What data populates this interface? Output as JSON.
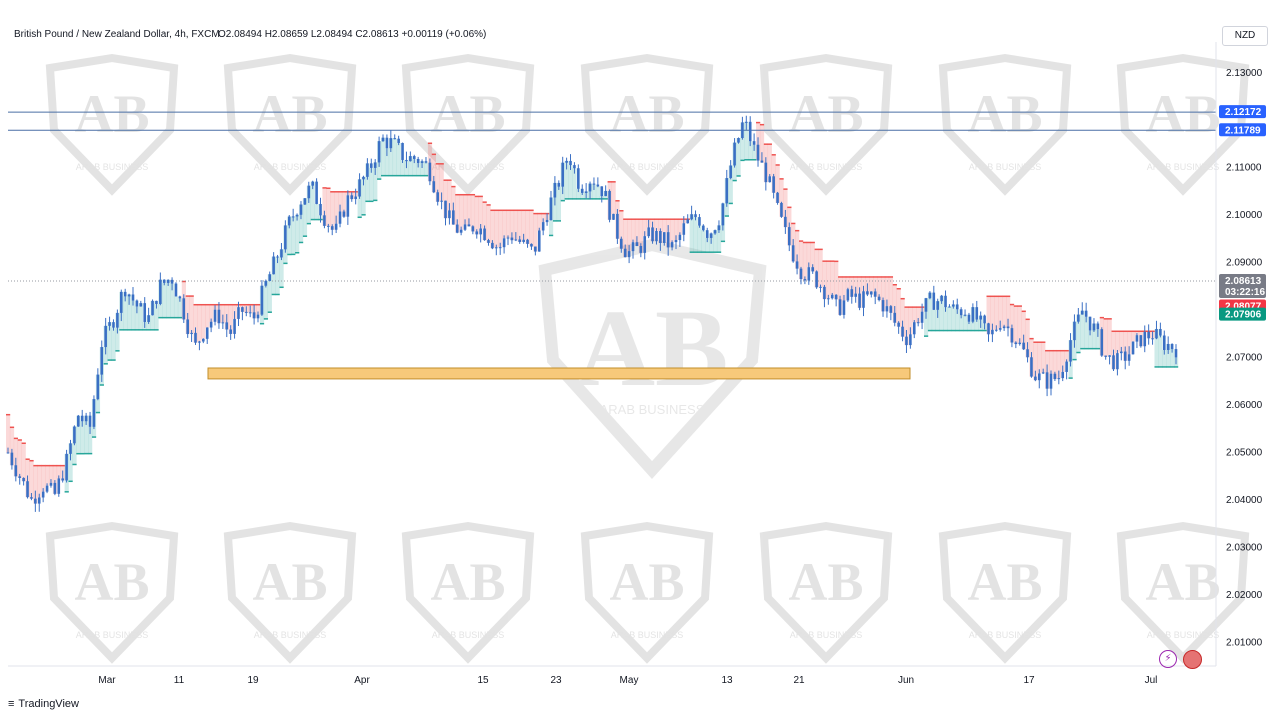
{
  "header": {
    "symbol": "British Pound / New Zealand Dollar, 4h, FXCM",
    "ohlc": "O2.08494  H2.08659  L2.08494  C2.08613  +0.00119 (+0.06%)"
  },
  "currency_button": "NZD",
  "footer": {
    "brand": "TradingView"
  },
  "watermark": {
    "text": "ARAB BUSINESS"
  },
  "colors": {
    "candle": "#3a6fc4",
    "bull_zone": "#26a69a",
    "bear_zone": "#ef5350",
    "support_box": "#f7c97a",
    "hline": "#4a6fa5"
  },
  "chart_data": {
    "type": "candlestick",
    "ylim": [
      2.005,
      2.1365
    ],
    "y_ticks": [
      "2.13000",
      "2.11000",
      "2.10000",
      "2.09000",
      "2.07000",
      "2.06000",
      "2.05000",
      "2.04000",
      "2.03000",
      "2.02000",
      "2.01000"
    ],
    "x_ticks": [
      "Mar",
      "11",
      "19",
      "Apr",
      "15",
      "23",
      "May",
      "13",
      "21",
      "Jun",
      "17",
      "Jul"
    ],
    "price_tags": [
      {
        "label": "2.12172",
        "value": 2.12172,
        "color": "#2962ff"
      },
      {
        "label": "2.11789",
        "value": 2.11789,
        "color": "#2962ff"
      },
      {
        "label": "2.08613",
        "value": 2.08613,
        "color": "#787b86",
        "countdown": "03:22:16"
      },
      {
        "label": "2.08077",
        "value": 2.08077,
        "color": "#f23645"
      },
      {
        "label": "2.07906",
        "value": 2.07906,
        "color": "#089981"
      }
    ],
    "horizontal_lines": [
      2.12172,
      2.11789
    ],
    "last_price": 2.08613,
    "support_zone": {
      "from": 2.0655,
      "to": 2.0678
    },
    "price_path": [
      [
        0.0,
        2.05
      ],
      [
        0.01,
        2.045
      ],
      [
        0.02,
        2.04
      ],
      [
        0.03,
        2.043
      ],
      [
        0.04,
        2.041
      ],
      [
        0.05,
        2.048
      ],
      [
        0.06,
        2.058
      ],
      [
        0.07,
        2.055
      ],
      [
        0.08,
        2.073
      ],
      [
        0.09,
        2.078
      ],
      [
        0.1,
        2.085
      ],
      [
        0.11,
        2.081
      ],
      [
        0.12,
        2.078
      ],
      [
        0.13,
        2.085
      ],
      [
        0.14,
        2.087
      ],
      [
        0.15,
        2.08
      ],
      [
        0.16,
        2.072
      ],
      [
        0.17,
        2.077
      ],
      [
        0.18,
        2.079
      ],
      [
        0.19,
        2.075
      ],
      [
        0.2,
        2.08
      ],
      [
        0.21,
        2.078
      ],
      [
        0.22,
        2.085
      ],
      [
        0.23,
        2.091
      ],
      [
        0.24,
        2.098
      ],
      [
        0.25,
        2.103
      ],
      [
        0.26,
        2.106
      ],
      [
        0.27,
        2.1
      ],
      [
        0.28,
        2.096
      ],
      [
        0.29,
        2.103
      ],
      [
        0.3,
        2.106
      ],
      [
        0.31,
        2.11
      ],
      [
        0.32,
        2.116
      ],
      [
        0.33,
        2.115
      ],
      [
        0.34,
        2.112
      ],
      [
        0.35,
        2.112
      ],
      [
        0.36,
        2.11
      ],
      [
        0.37,
        2.103
      ],
      [
        0.38,
        2.098
      ],
      [
        0.39,
        2.096
      ],
      [
        0.4,
        2.098
      ],
      [
        0.41,
        2.096
      ],
      [
        0.42,
        2.093
      ],
      [
        0.43,
        2.096
      ],
      [
        0.44,
        2.094
      ],
      [
        0.45,
        2.092
      ],
      [
        0.46,
        2.1
      ],
      [
        0.47,
        2.106
      ],
      [
        0.48,
        2.113
      ],
      [
        0.49,
        2.106
      ],
      [
        0.5,
        2.108
      ],
      [
        0.51,
        2.105
      ],
      [
        0.52,
        2.097
      ],
      [
        0.53,
        2.092
      ],
      [
        0.54,
        2.093
      ],
      [
        0.55,
        2.096
      ],
      [
        0.56,
        2.095
      ],
      [
        0.57,
        2.093
      ],
      [
        0.58,
        2.098
      ],
      [
        0.59,
        2.1
      ],
      [
        0.6,
        2.096
      ],
      [
        0.61,
        2.1
      ],
      [
        0.62,
        2.112
      ],
      [
        0.63,
        2.12
      ],
      [
        0.64,
        2.113
      ],
      [
        0.65,
        2.108
      ],
      [
        0.66,
        2.1
      ],
      [
        0.67,
        2.093
      ],
      [
        0.68,
        2.088
      ],
      [
        0.69,
        2.087
      ],
      [
        0.7,
        2.084
      ],
      [
        0.71,
        2.08
      ],
      [
        0.72,
        2.083
      ],
      [
        0.73,
        2.082
      ],
      [
        0.74,
        2.083
      ],
      [
        0.75,
        2.081
      ],
      [
        0.76,
        2.077
      ],
      [
        0.77,
        2.074
      ],
      [
        0.78,
        2.079
      ],
      [
        0.79,
        2.082
      ],
      [
        0.8,
        2.082
      ],
      [
        0.81,
        2.08
      ],
      [
        0.82,
        2.08
      ],
      [
        0.83,
        2.078
      ],
      [
        0.84,
        2.074
      ],
      [
        0.85,
        2.078
      ],
      [
        0.86,
        2.075
      ],
      [
        0.87,
        2.071
      ],
      [
        0.88,
        2.066
      ],
      [
        0.89,
        2.065
      ],
      [
        0.9,
        2.066
      ],
      [
        0.91,
        2.074
      ],
      [
        0.92,
        2.08
      ],
      [
        0.93,
        2.076
      ],
      [
        0.94,
        2.07
      ],
      [
        0.95,
        2.069
      ],
      [
        0.96,
        2.071
      ],
      [
        0.97,
        2.074
      ],
      [
        0.98,
        2.075
      ],
      [
        0.99,
        2.073
      ],
      [
        1.0,
        2.072
      ]
    ]
  }
}
